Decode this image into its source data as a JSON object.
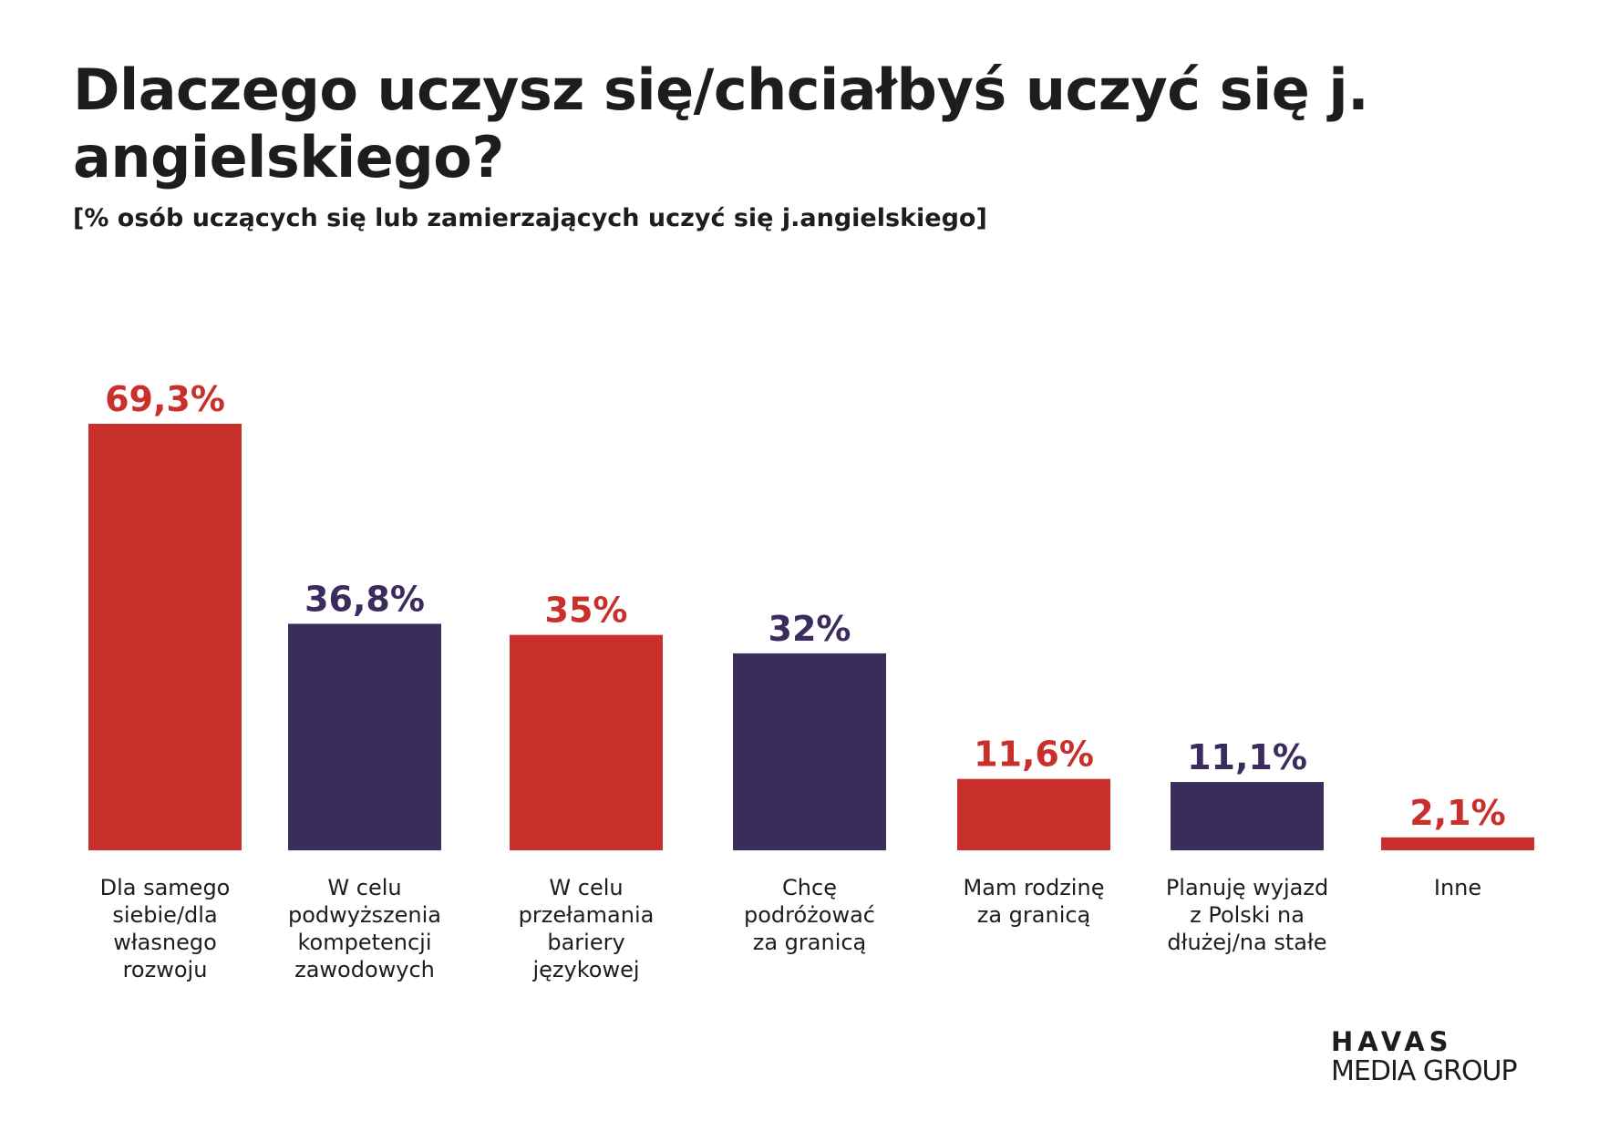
{
  "chart_data": {
    "type": "bar",
    "title": "Dlaczego uczysz się/chciałbyś uczyć się j. angielskiego?",
    "subtitle": "[% osób uczących się lub zamierzających uczyć się j.angielskiego]",
    "xlabel": "",
    "ylabel": "",
    "ylim": [
      0,
      69.3
    ],
    "grid": false,
    "categories": [
      [
        "Dla samego",
        "siebie/dla",
        "własnego",
        "rozwoju"
      ],
      [
        "W celu",
        "podwyższenia",
        "kompetencji",
        "zawodowych"
      ],
      [
        "W celu",
        "przełamania",
        "bariery",
        "językowej"
      ],
      [
        "Chcę",
        "podróżować",
        "za granicą"
      ],
      [
        "Mam rodzinę",
        "za granicą"
      ],
      [
        "Planuję wyjazd",
        "z Polski na",
        "dłużej/na stałe"
      ],
      [
        "Inne"
      ]
    ],
    "values": [
      69.3,
      36.8,
      35,
      32,
      11.6,
      11.1,
      2.1
    ],
    "value_labels": [
      "69,3%",
      "36,8%",
      "35%",
      "32%",
      "11,6%",
      "11,1%",
      "2,1%"
    ],
    "colors": [
      "#c9302c",
      "#3b2c5e",
      "#c9302c",
      "#3b2c5e",
      "#c9302c",
      "#3b2c5e",
      "#c9302c"
    ]
  },
  "logo": {
    "line1": "HAVAS",
    "line2": "MEDIA GROUP"
  }
}
